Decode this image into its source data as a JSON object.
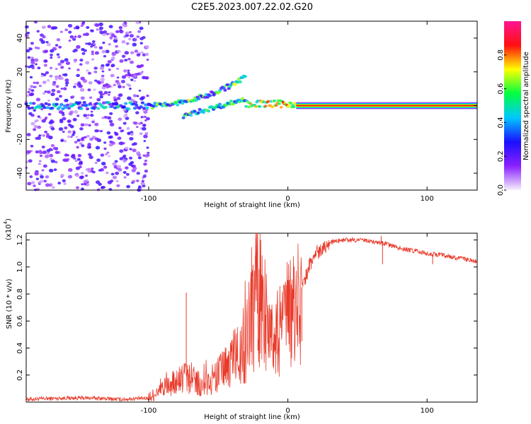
{
  "figure_title": "C2E5.2023.007.22.02.G20",
  "colors": {
    "line": "#e83a2a",
    "axis": "#000000",
    "background": "#ffffff"
  },
  "chart_data": [
    {
      "type": "heatmap",
      "title": "C2E5.2023.007.22.02.G20",
      "xlabel": "Height of straight line (km)",
      "ylabel": "Frequency (Hz)",
      "xlim": [
        -188,
        136
      ],
      "ylim": [
        -50,
        50
      ],
      "x_ticks": [
        -100,
        0,
        100
      ],
      "x_tick_labels": [
        "-100",
        "0",
        "100"
      ],
      "y_ticks": [
        -40,
        -20,
        0,
        20,
        40
      ],
      "y_tick_labels": [
        "-40",
        "-20",
        "0",
        "20",
        "40"
      ],
      "colorbar": {
        "label": "Normalized spectral amplitude",
        "range": [
          0,
          1
        ],
        "ticks": [
          0.0,
          0.2,
          0.4,
          0.6,
          0.8
        ],
        "tick_labels": [
          "0.0",
          "0.2",
          "0.4",
          "0.6",
          "0.8"
        ],
        "colormap": [
          "#f5f0fb",
          "#8a20ff",
          "#1a10ff",
          "#00c8ff",
          "#00ff40",
          "#ffff00",
          "#ff1010",
          "#ff1493"
        ]
      },
      "features": [
        {
          "name": "strong-carrier",
          "x_range": [
            6,
            136
          ],
          "frequency": 0,
          "amplitude": 0.85
        },
        {
          "name": "weak-carrier",
          "x_range": [
            -188,
            -100
          ],
          "frequency": 0,
          "amplitude": 0.35
        },
        {
          "name": "rising-branch",
          "x_range": [
            -100,
            -30
          ],
          "frequency_range": [
            0,
            17
          ],
          "amplitude": 0.45
        },
        {
          "name": "falling-branch",
          "x_range": [
            -75,
            -30
          ],
          "frequency_range": [
            -6,
            4
          ],
          "amplitude": 0.4
        },
        {
          "name": "broadband-noise",
          "x_range": [
            -188,
            -100
          ],
          "frequency_range": [
            -50,
            50
          ],
          "amplitude": 0.15
        }
      ]
    },
    {
      "type": "line",
      "title": "",
      "xlabel": "Height of straight line (km)",
      "ylabel": "SNR (10 * v/v)",
      "y_scale_label": "(x10",
      "y_scale_exp": "4",
      "xlim": [
        -188,
        136
      ],
      "ylim": [
        0,
        1.25
      ],
      "x_ticks": [
        -100,
        0,
        100
      ],
      "x_tick_labels": [
        "-100",
        "0",
        "100"
      ],
      "y_ticks": [
        0.2,
        0.4,
        0.6,
        0.8,
        1.0,
        1.2
      ],
      "y_tick_labels": [
        "0.2",
        "0.4",
        "0.6",
        "0.8",
        "1.0",
        "1.2"
      ],
      "series": [
        {
          "name": "SNR",
          "x": [
            -188,
            -160,
            -140,
            -120,
            -100,
            -90,
            -80,
            -74,
            -70,
            -65,
            -60,
            -50,
            -40,
            -30,
            -25,
            -22,
            -20,
            -15,
            -10,
            -5,
            0,
            5,
            10,
            15,
            20,
            25,
            30,
            40,
            50,
            60,
            70,
            80,
            90,
            100,
            110,
            120,
            136
          ],
          "values": [
            0.02,
            0.03,
            0.03,
            0.02,
            0.03,
            0.1,
            0.15,
            0.2,
            0.18,
            0.15,
            0.12,
            0.2,
            0.3,
            0.45,
            0.7,
            0.9,
            0.8,
            0.6,
            0.45,
            0.55,
            0.62,
            0.7,
            0.85,
            1.0,
            1.1,
            1.15,
            1.18,
            1.2,
            1.2,
            1.19,
            1.17,
            1.14,
            1.12,
            1.1,
            1.09,
            1.07,
            1.04
          ]
        }
      ],
      "spikes": [
        {
          "x": -73,
          "value": 0.81
        },
        {
          "x": -23,
          "value": 1.22
        },
        {
          "x": -20,
          "value": 1.2
        },
        {
          "x": 10,
          "value": 0.45
        },
        {
          "x": 67,
          "value": 1.23
        },
        {
          "x": 68,
          "value": 1.02
        },
        {
          "x": 104,
          "value": 1.02
        }
      ]
    }
  ]
}
